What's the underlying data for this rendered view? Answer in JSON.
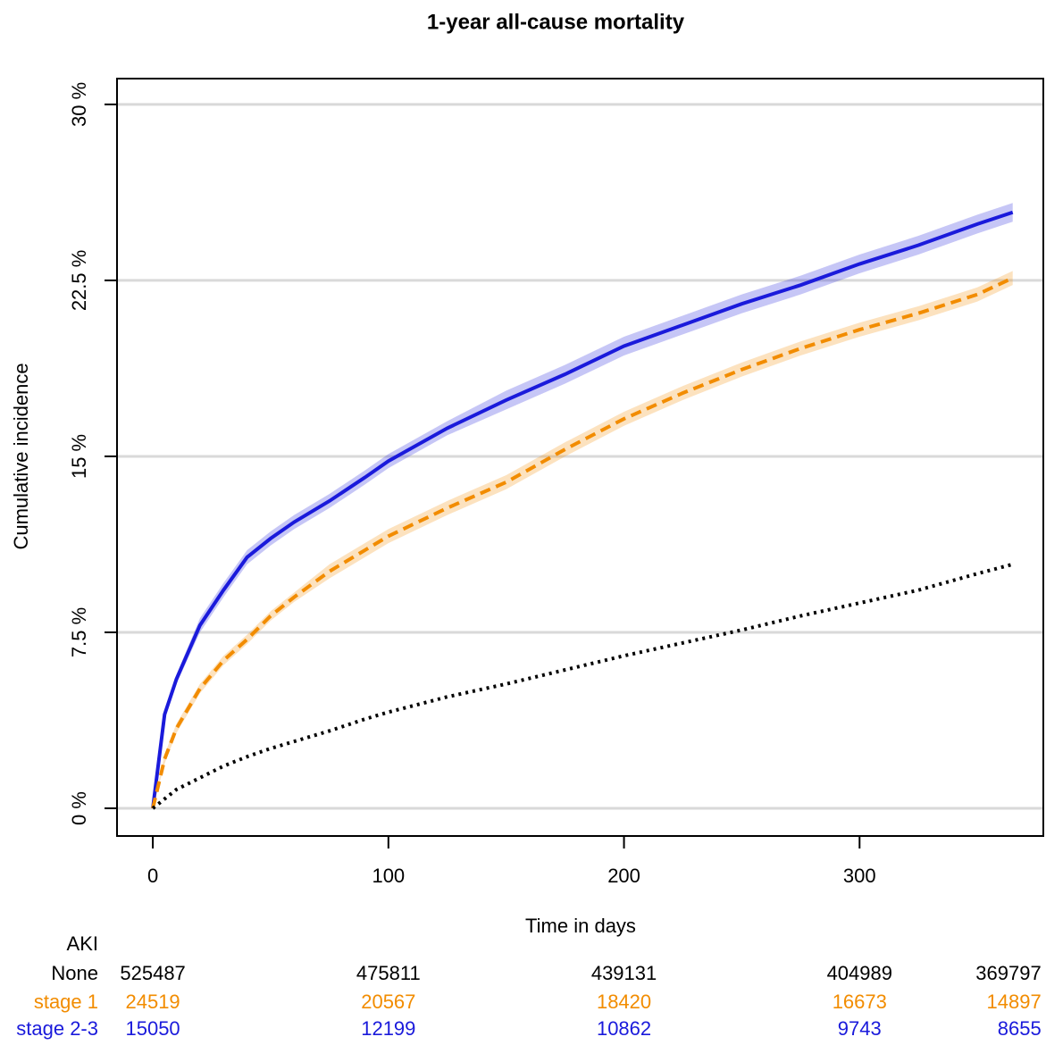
{
  "chart_data": {
    "type": "line",
    "title": "1-year all-cause mortality",
    "x_label": "Time in days",
    "y_label": "Cumulative incidence",
    "xlim": [
      -15.2,
      378
    ],
    "xticks": [
      0,
      100,
      200,
      300
    ],
    "ylim": [
      -1.18,
      31.1
    ],
    "yticks": [
      {
        "value": 0,
        "label": "0 %"
      },
      {
        "value": 7.5,
        "label": "7.5 %"
      },
      {
        "value": 15,
        "label": "15 %"
      },
      {
        "value": 22.5,
        "label": "22.5 %"
      },
      {
        "value": 30,
        "label": "30 %"
      }
    ],
    "grid": true,
    "x": [
      0,
      5,
      10,
      20,
      30,
      40,
      50,
      60,
      75,
      90,
      100,
      125,
      150,
      175,
      200,
      225,
      250,
      275,
      300,
      325,
      350,
      365
    ],
    "series": [
      {
        "name": "stage 2-3",
        "color": "#1a1adb",
        "dash": "solid",
        "values": [
          0,
          4.0,
          5.5,
          7.8,
          9.3,
          10.7,
          11.5,
          12.2,
          13.1,
          14.1,
          14.8,
          16.2,
          17.4,
          18.5,
          19.7,
          20.6,
          21.5,
          22.3,
          23.2,
          24.0,
          24.9,
          25.4
        ],
        "lower": [
          0,
          3.8,
          5.3,
          7.5,
          9.0,
          10.4,
          11.2,
          11.9,
          12.8,
          13.8,
          14.5,
          15.9,
          17.0,
          18.1,
          19.3,
          20.2,
          21.1,
          21.9,
          22.8,
          23.6,
          24.5,
          25.0
        ],
        "upper": [
          0,
          4.2,
          5.7,
          8.1,
          9.6,
          11.0,
          11.8,
          12.5,
          13.4,
          14.4,
          15.1,
          16.5,
          17.8,
          18.9,
          20.1,
          21.0,
          21.9,
          22.7,
          23.6,
          24.4,
          25.3,
          25.8
        ]
      },
      {
        "name": "stage 1",
        "color": "#f28c00",
        "dash": "dashed",
        "values": [
          0,
          2.1,
          3.4,
          5.1,
          6.3,
          7.2,
          8.2,
          9.0,
          10.1,
          11.0,
          11.6,
          12.8,
          13.9,
          15.3,
          16.6,
          17.7,
          18.7,
          19.6,
          20.4,
          21.1,
          21.9,
          22.6
        ],
        "lower": [
          0,
          1.9,
          3.2,
          4.9,
          6.1,
          7.0,
          8.0,
          8.8,
          9.8,
          10.7,
          11.3,
          12.5,
          13.6,
          15.0,
          16.3,
          17.4,
          18.4,
          19.3,
          20.1,
          20.8,
          21.6,
          22.3
        ],
        "upper": [
          0,
          2.3,
          3.6,
          5.3,
          6.5,
          7.4,
          8.4,
          9.2,
          10.4,
          11.3,
          11.9,
          13.1,
          14.2,
          15.6,
          16.9,
          18.0,
          19.0,
          19.9,
          20.7,
          21.4,
          22.2,
          22.9
        ]
      },
      {
        "name": "None",
        "color": "#000000",
        "dash": "dotted",
        "values": [
          0,
          0.4,
          0.8,
          1.3,
          1.8,
          2.2,
          2.55,
          2.85,
          3.3,
          3.8,
          4.1,
          4.75,
          5.3,
          5.9,
          6.5,
          7.05,
          7.6,
          8.2,
          8.75,
          9.3,
          10.0,
          10.4
        ]
      }
    ],
    "risk_table": {
      "title": "AKI",
      "times": [
        0,
        100,
        200,
        300,
        365
      ],
      "rows": [
        {
          "name": "None",
          "color": "#000000",
          "counts": [
            525487,
            475811,
            439131,
            404989,
            369797
          ]
        },
        {
          "name": "stage 1",
          "color": "#f28c00",
          "counts": [
            24519,
            20567,
            18420,
            16673,
            14897
          ]
        },
        {
          "name": "stage 2-3",
          "color": "#1a1adb",
          "counts": [
            15050,
            12199,
            10862,
            9743,
            8655
          ]
        }
      ]
    }
  }
}
